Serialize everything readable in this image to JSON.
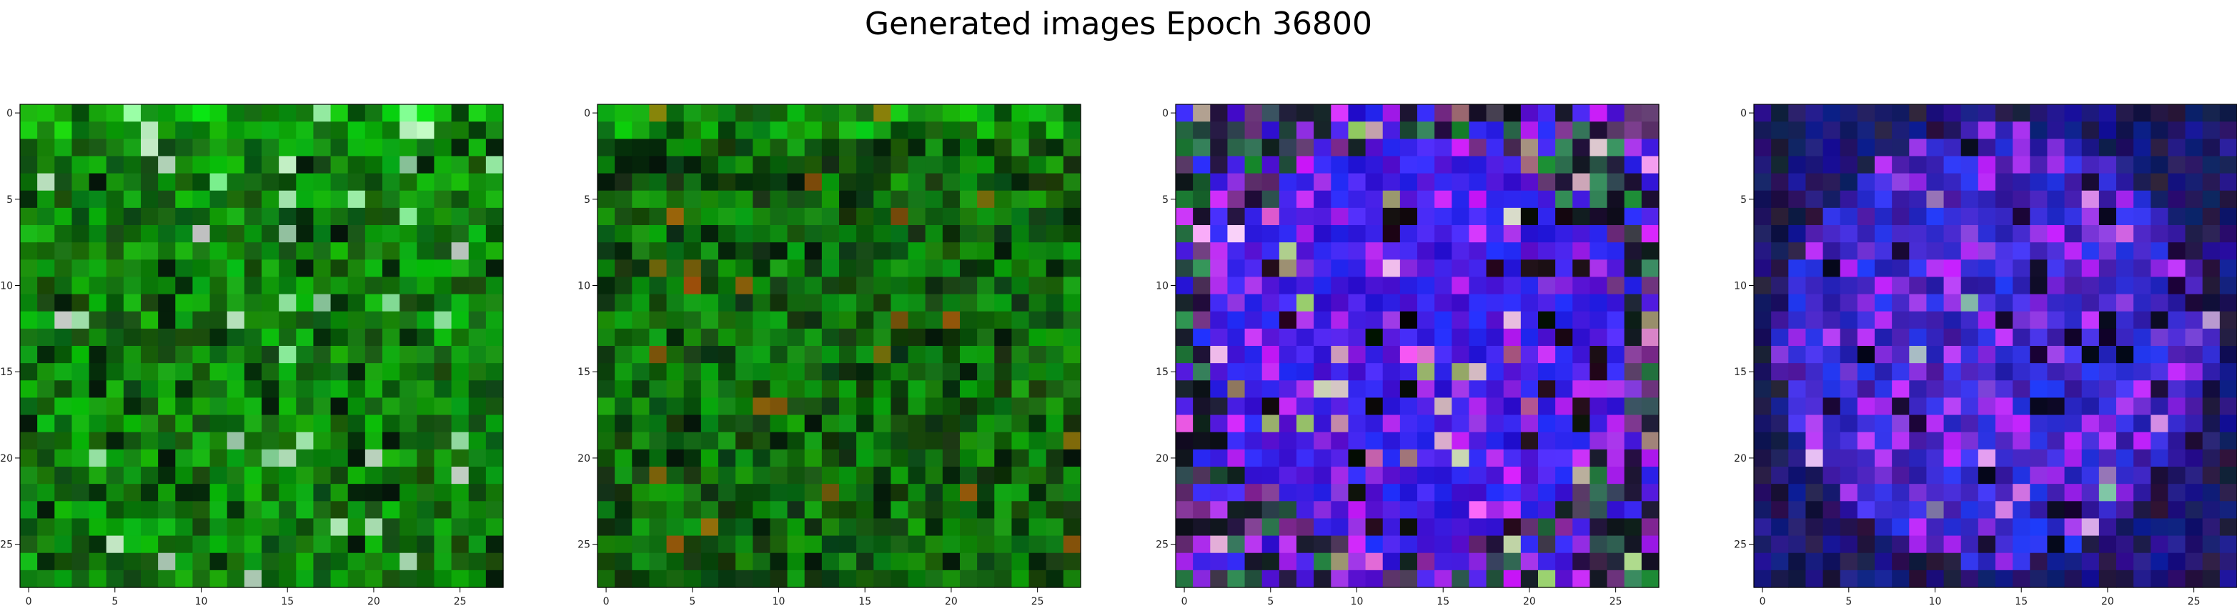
{
  "figure": {
    "title": "Generated images Epoch 36800"
  },
  "chart_data": [
    {
      "type": "heatmap",
      "subject": "generated image 1",
      "grid_size": [
        28,
        28
      ],
      "palette": "green",
      "x_ticks": [
        0,
        5,
        10,
        15,
        20,
        25
      ],
      "y_ticks": [
        0,
        5,
        10,
        15,
        20,
        25
      ],
      "xlim": [
        -0.5,
        27.5
      ],
      "ylim": [
        27.5,
        -0.5
      ]
    },
    {
      "type": "heatmap",
      "subject": "generated image 2",
      "grid_size": [
        28,
        28
      ],
      "palette": "dark-green",
      "x_ticks": [
        0,
        5,
        10,
        15,
        20,
        25
      ],
      "y_ticks": [
        0,
        5,
        10,
        15,
        20,
        25
      ],
      "xlim": [
        -0.5,
        27.5
      ],
      "ylim": [
        27.5,
        -0.5
      ]
    },
    {
      "type": "heatmap",
      "subject": "generated image 3",
      "grid_size": [
        28,
        28
      ],
      "palette": "blue-violet-mixed",
      "x_ticks": [
        0,
        5,
        10,
        15,
        20,
        25
      ],
      "y_ticks": [
        0,
        5,
        10,
        15,
        20,
        25
      ],
      "xlim": [
        -0.5,
        27.5
      ],
      "ylim": [
        27.5,
        -0.5
      ]
    },
    {
      "type": "heatmap",
      "subject": "generated image 4",
      "grid_size": [
        28,
        28
      ],
      "palette": "dark-blue-violet",
      "x_ticks": [
        0,
        5,
        10,
        15,
        20,
        25
      ],
      "y_ticks": [
        0,
        5,
        10,
        15,
        20,
        25
      ],
      "xlim": [
        -0.5,
        27.5
      ],
      "ylim": [
        27.5,
        -0.5
      ]
    }
  ]
}
